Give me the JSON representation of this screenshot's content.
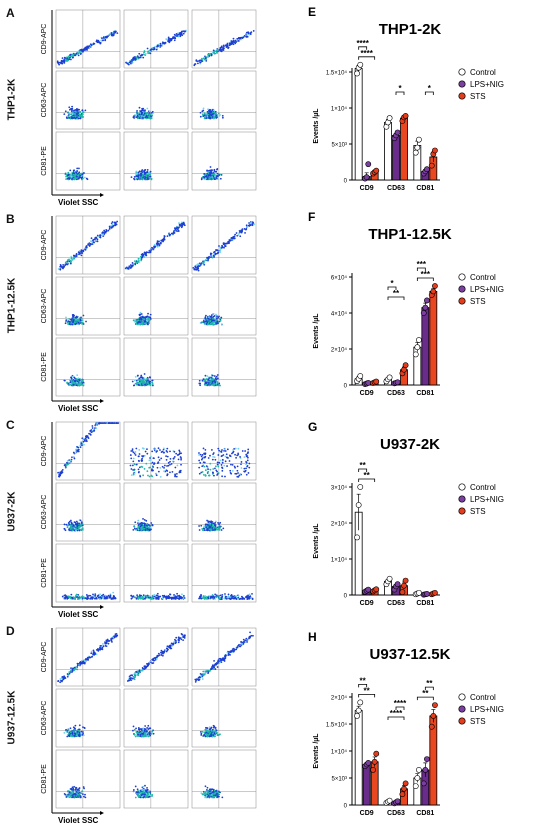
{
  "colors": {
    "control": "#ffffff",
    "lps_nig": "#6a2c8a",
    "sts": "#e8471f",
    "dot_control": "#ffffff",
    "dot_lps": "#7b3fa0",
    "dot_sts": "#e23d1c",
    "axis": "#000000"
  },
  "flow_panels": [
    {
      "letter": "A",
      "group": "THP1-2K",
      "rows": [
        {
          "marker": "CD9-APC",
          "shape": "diagonal-low"
        },
        {
          "marker": "CD63-APC",
          "shape": "blob"
        },
        {
          "marker": "CD81-PE",
          "shape": "blob"
        }
      ],
      "xlabel": "Violet SSC"
    },
    {
      "letter": "B",
      "group": "THP1-12.5K",
      "rows": [
        {
          "marker": "CD9-APC",
          "shape": "diagonal"
        },
        {
          "marker": "CD63-APC",
          "shape": "blob"
        },
        {
          "marker": "CD81-PE",
          "shape": "blob"
        }
      ],
      "xlabel": "Violet SSC"
    },
    {
      "letter": "C",
      "group": "U937-2K",
      "rows": [
        {
          "marker": "CD9-APC",
          "shape": "steep"
        },
        {
          "marker": "CD63-APC",
          "shape": "blob"
        },
        {
          "marker": "CD81-PE",
          "shape": "low"
        }
      ],
      "xlabel": "Violet SSC"
    },
    {
      "letter": "D",
      "group": "U937-12.5K",
      "rows": [
        {
          "marker": "CD9-APC",
          "shape": "diagonal"
        },
        {
          "marker": "CD63-APC",
          "shape": "blob"
        },
        {
          "marker": "CD81-PE",
          "shape": "blob"
        }
      ],
      "xlabel": "Violet SSC"
    }
  ],
  "legend_labels": [
    "Control",
    "LPS+NIG",
    "STS"
  ],
  "chart_data": [
    {
      "letter": "E",
      "type": "bar",
      "title": "THP1-2K",
      "ylabel": "Events /µL",
      "ylim": [
        0,
        15000
      ],
      "yticks": [
        0,
        5000,
        10000,
        15000
      ],
      "ytick_labels": [
        "0",
        "5×10³",
        "1×10⁴",
        "1.5×10⁴"
      ],
      "categories": [
        "CD9",
        "CD63",
        "CD81"
      ],
      "series": [
        {
          "name": "Control",
          "values": [
            15500,
            8000,
            4800
          ],
          "points": [
            [
              14800,
              15600,
              16000
            ],
            [
              7400,
              8000,
              8600
            ],
            [
              3800,
              4500,
              5600
            ]
          ],
          "errors": [
            400,
            400,
            600
          ]
        },
        {
          "name": "LPS+NIG",
          "values": [
            500,
            6200,
            1200
          ],
          "points": [
            [
              200,
              400,
              2200
            ],
            [
              5800,
              6200,
              6600
            ],
            [
              900,
              1200,
              1500
            ]
          ],
          "errors": [
            500,
            300,
            200
          ]
        },
        {
          "name": "STS",
          "values": [
            1100,
            8600,
            3200
          ],
          "points": [
            [
              900,
              1100,
              1300
            ],
            [
              8200,
              8700,
              8900
            ],
            [
              2000,
              3600,
              4100
            ]
          ],
          "errors": [
            150,
            250,
            700
          ]
        }
      ],
      "significance": [
        {
          "cat": 0,
          "from": 0,
          "to": 2,
          "label": "****"
        },
        {
          "cat": 0,
          "from": 0,
          "to": 1,
          "label": "****"
        },
        {
          "cat": 1,
          "from": 1,
          "to": 2,
          "label": "*"
        },
        {
          "cat": 2,
          "from": 1,
          "to": 2,
          "label": "*"
        }
      ]
    },
    {
      "letter": "F",
      "type": "bar",
      "title": "THP1-12.5K",
      "ylabel": "Events /µL",
      "ylim": [
        0,
        60000
      ],
      "yticks": [
        0,
        20000,
        40000,
        60000
      ],
      "ytick_labels": [
        "0",
        "2×10⁴",
        "4×10⁴",
        "6×10⁴"
      ],
      "categories": [
        "CD9",
        "CD63",
        "CD81"
      ],
      "series": [
        {
          "name": "Control",
          "values": [
            3500,
            3200,
            21000
          ],
          "points": [
            [
              2200,
              3500,
              5000
            ],
            [
              2000,
              3200,
              4200
            ],
            [
              17000,
              21000,
              25000
            ]
          ],
          "errors": [
            1000,
            800,
            2500
          ]
        },
        {
          "name": "LPS+NIG",
          "values": [
            800,
            1200,
            43000
          ],
          "points": [
            [
              500,
              800,
              1200
            ],
            [
              900,
              1200,
              1500
            ],
            [
              40000,
              43000,
              47000
            ]
          ],
          "errors": [
            300,
            300,
            2500
          ]
        },
        {
          "name": "STS",
          "values": [
            1500,
            8500,
            52000
          ],
          "points": [
            [
              1100,
              1500,
              1900
            ],
            [
              6500,
              8500,
              11000
            ],
            [
              50000,
              52000,
              55000
            ]
          ],
          "errors": [
            300,
            1500,
            1500
          ]
        }
      ],
      "significance": [
        {
          "cat": 1,
          "from": 0,
          "to": 2,
          "label": "**"
        },
        {
          "cat": 1,
          "from": 0,
          "to": 1,
          "label": "*"
        },
        {
          "cat": 2,
          "from": 0,
          "to": 2,
          "label": "***"
        },
        {
          "cat": 2,
          "from": 0,
          "to": 1,
          "label": "***"
        }
      ]
    },
    {
      "letter": "G",
      "type": "bar",
      "title": "U937-2K",
      "ylabel": "Events /µL",
      "ylim": [
        0,
        30000
      ],
      "yticks": [
        0,
        10000,
        20000,
        30000
      ],
      "ytick_labels": [
        "0",
        "1×10⁴",
        "2×10⁴",
        "3×10⁴"
      ],
      "categories": [
        "CD9",
        "CD63",
        "CD81"
      ],
      "series": [
        {
          "name": "Control",
          "values": [
            23000,
            3800,
            400
          ],
          "points": [
            [
              16000,
              25000,
              30000
            ],
            [
              3000,
              3800,
              4500
            ],
            [
              200,
              400,
              600
            ]
          ],
          "errors": [
            5000,
            500,
            150
          ]
        },
        {
          "name": "LPS+NIG",
          "values": [
            1200,
            2400,
            200
          ],
          "points": [
            [
              900,
              1200,
              1500
            ],
            [
              1500,
              2400,
              3000
            ],
            [
              100,
              200,
              300
            ]
          ],
          "errors": [
            200,
            500,
            80
          ]
        },
        {
          "name": "STS",
          "values": [
            1300,
            2600,
            400
          ],
          "points": [
            [
              1000,
              1300,
              1600
            ],
            [
              800,
              2600,
              4000
            ],
            [
              200,
              400,
              600
            ]
          ],
          "errors": [
            200,
            1000,
            150
          ]
        }
      ],
      "significance": [
        {
          "cat": 0,
          "from": 0,
          "to": 2,
          "label": "**"
        },
        {
          "cat": 0,
          "from": 0,
          "to": 1,
          "label": "**"
        }
      ]
    },
    {
      "letter": "H",
      "type": "bar",
      "title": "U937-12.5K",
      "ylabel": "Events /µL",
      "ylim": [
        0,
        20000
      ],
      "yticks": [
        0,
        5000,
        10000,
        15000,
        20000
      ],
      "ytick_labels": [
        "0",
        "5×10³",
        "1×10⁴",
        "1.5×10⁴",
        "2×10⁴"
      ],
      "categories": [
        "CD9",
        "CD63",
        "CD81"
      ],
      "series": [
        {
          "name": "Control",
          "values": [
            17500,
            600,
            5000
          ],
          "points": [
            [
              16500,
              17500,
              19000
            ],
            [
              400,
              600,
              800
            ],
            [
              3500,
              5000,
              6500
            ]
          ],
          "errors": [
            800,
            150,
            800
          ]
        },
        {
          "name": "LPS+NIG",
          "values": [
            7500,
            500,
            6500
          ],
          "points": [
            [
              7200,
              7500,
              7800
            ],
            [
              300,
              500,
              700
            ],
            [
              4000,
              6500,
              8500
            ]
          ],
          "errors": [
            200,
            150,
            1300
          ]
        },
        {
          "name": "STS",
          "values": [
            8000,
            3000,
            16500
          ],
          "points": [
            [
              6500,
              8000,
              9500
            ],
            [
              2000,
              3000,
              4000
            ],
            [
              14500,
              16500,
              18500
            ]
          ],
          "errors": [
            900,
            600,
            1200
          ]
        }
      ],
      "significance": [
        {
          "cat": 0,
          "from": 0,
          "to": 2,
          "label": "**"
        },
        {
          "cat": 0,
          "from": 0,
          "to": 1,
          "label": "**"
        },
        {
          "cat": 1,
          "from": 0,
          "to": 2,
          "label": "****"
        },
        {
          "cat": 1,
          "from": 1,
          "to": 2,
          "label": "****"
        },
        {
          "cat": 2,
          "from": 0,
          "to": 2,
          "label": "**"
        },
        {
          "cat": 2,
          "from": 1,
          "to": 2,
          "label": "**"
        }
      ]
    }
  ]
}
